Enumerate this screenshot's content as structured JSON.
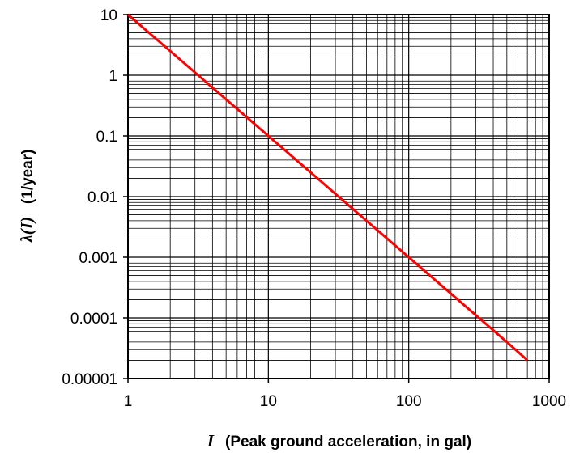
{
  "chart_data": {
    "type": "line",
    "x_scale": "log",
    "y_scale": "log",
    "xlim": [
      1,
      1000
    ],
    "ylim": [
      1e-05,
      10
    ],
    "grid": true,
    "x_ticks": [
      "1",
      "10",
      "100",
      "1000"
    ],
    "y_ticks": [
      "10",
      "1",
      "0.1",
      "0.01",
      "0.001",
      "0.0001",
      "0.00001"
    ],
    "xlabel_symbol": "I",
    "xlabel": "(Peak ground acceleration, in gal)",
    "ylabel_symbol": "λ(I)",
    "ylabel": "(1/year)",
    "series": [
      {
        "color": "#ff0000",
        "x": [
          1,
          2,
          5,
          10,
          20,
          50,
          100,
          200,
          500,
          700
        ],
        "y": [
          10,
          2.5,
          0.4,
          0.1,
          0.025,
          0.004,
          0.001,
          0.00025,
          4e-05,
          2e-05
        ]
      }
    ]
  }
}
